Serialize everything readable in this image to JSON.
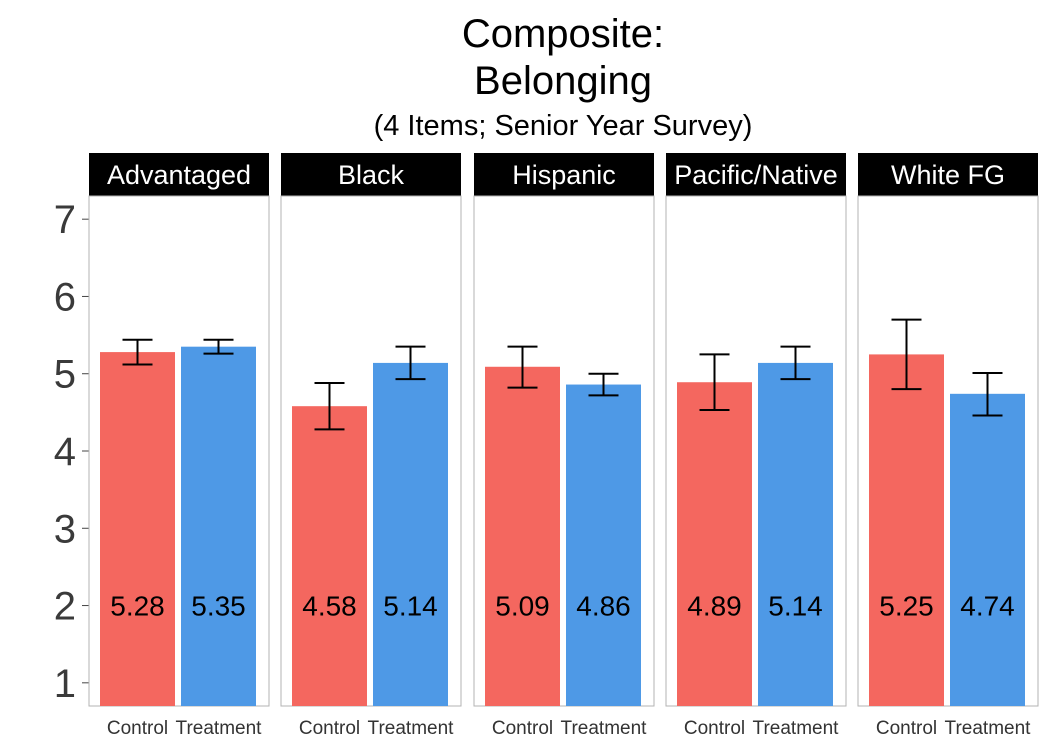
{
  "chart_data": {
    "type": "bar",
    "title": "Composite:",
    "title_line2": "Belonging",
    "subtitle": "(4 Items; Senior Year Survey)",
    "xlabel": "",
    "ylabel": "",
    "ylim": [
      0.7,
      7.3
    ],
    "yticks": [
      1,
      2,
      3,
      4,
      5,
      6,
      7
    ],
    "grid": false,
    "legend": "none",
    "categories": [
      "Control",
      "Treatment"
    ],
    "colors": {
      "Control": "#F4675F",
      "Treatment": "#4E99E6"
    },
    "label_y": 2,
    "panels": [
      {
        "name": "Advantaged",
        "values": [
          5.28,
          5.35
        ],
        "value_labels": [
          "5.28",
          "5.35"
        ],
        "error_low": [
          5.12,
          5.26
        ],
        "error_high": [
          5.44,
          5.44
        ]
      },
      {
        "name": "Black",
        "values": [
          4.58,
          5.14
        ],
        "value_labels": [
          "4.58",
          "5.14"
        ],
        "error_low": [
          4.28,
          4.93
        ],
        "error_high": [
          4.88,
          5.35
        ]
      },
      {
        "name": "Hispanic",
        "values": [
          5.09,
          4.86
        ],
        "value_labels": [
          "5.09",
          "4.86"
        ],
        "error_low": [
          4.82,
          4.72
        ],
        "error_high": [
          5.35,
          5.0
        ]
      },
      {
        "name": "Pacific/Native",
        "values": [
          4.89,
          5.14
        ],
        "value_labels": [
          "4.89",
          "5.14"
        ],
        "error_low": [
          4.53,
          4.93
        ],
        "error_high": [
          5.25,
          5.35
        ]
      },
      {
        "name": "White FG",
        "values": [
          5.25,
          4.74
        ],
        "value_labels": [
          "5.25",
          "4.74"
        ],
        "error_low": [
          4.8,
          4.46
        ],
        "error_high": [
          5.7,
          5.01
        ]
      }
    ]
  }
}
